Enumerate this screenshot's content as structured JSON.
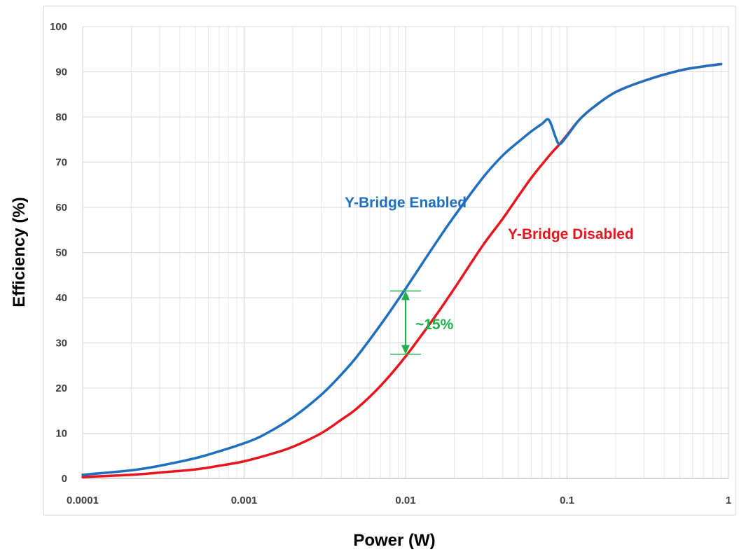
{
  "chart_data": {
    "type": "line",
    "xscale": "log",
    "xlabel": "Power (W)",
    "ylabel": "Efficiency (%)",
    "xlim": [
      0.0001,
      1
    ],
    "ylim": [
      0,
      100
    ],
    "x_ticks": [
      "0.0001",
      "0.001",
      "0.01",
      "0.1",
      "1"
    ],
    "y_ticks": [
      "0",
      "10",
      "20",
      "30",
      "40",
      "50",
      "60",
      "70",
      "80",
      "90",
      "100"
    ],
    "grid": true,
    "series": [
      {
        "name": "Y-Bridge Enabled",
        "color": "#1f6fbf",
        "x": [
          0.0001,
          0.0002,
          0.0003,
          0.0005,
          0.0007,
          0.001,
          0.0013,
          0.002,
          0.003,
          0.004,
          0.005,
          0.007,
          0.01,
          0.015,
          0.02,
          0.03,
          0.04,
          0.05,
          0.06,
          0.07,
          0.076,
          0.08,
          0.085,
          0.09,
          0.1,
          0.12,
          0.15,
          0.2,
          0.3,
          0.5,
          0.7,
          0.9
        ],
        "y": [
          0.8,
          1.8,
          2.8,
          4.5,
          6.0,
          7.8,
          9.5,
          13.5,
          18.5,
          23.0,
          27.0,
          34.0,
          42.0,
          51.5,
          58.0,
          66.5,
          71.5,
          74.5,
          76.8,
          78.5,
          79.5,
          78.2,
          75.5,
          74.0,
          75.8,
          79.5,
          82.5,
          85.5,
          88.0,
          90.3,
          91.2,
          91.7
        ]
      },
      {
        "name": "Y-Bridge Disabled",
        "color": "#e8141e",
        "x": [
          0.0001,
          0.0002,
          0.0003,
          0.0005,
          0.0007,
          0.001,
          0.0015,
          0.002,
          0.003,
          0.004,
          0.005,
          0.007,
          0.01,
          0.015,
          0.02,
          0.03,
          0.04,
          0.05,
          0.06,
          0.07,
          0.08,
          0.09,
          0.1,
          0.12,
          0.15,
          0.2,
          0.3,
          0.5,
          0.7,
          0.9
        ],
        "y": [
          0.3,
          0.8,
          1.3,
          2.0,
          2.8,
          3.8,
          5.5,
          7.0,
          10.0,
          13.0,
          15.5,
          20.5,
          27.0,
          35.5,
          42.0,
          51.5,
          57.5,
          62.5,
          66.5,
          69.5,
          72.0,
          74.0,
          76.0,
          79.5,
          82.5,
          85.5,
          88.0,
          90.3,
          91.2,
          91.7
        ]
      }
    ],
    "annotations": [
      {
        "text": "Y-Bridge Enabled",
        "color": "#1f6fbf",
        "x": 0.0042,
        "y": 60
      },
      {
        "text": "Y-Bridge Disabled",
        "color": "#e8141e",
        "x": 0.043,
        "y": 53
      },
      {
        "text": "~15%",
        "color": "#22b04c",
        "x": 0.0115,
        "y": 33
      }
    ],
    "marker": {
      "color": "#22b04c",
      "x": 0.01,
      "y_top": 41.5,
      "y_bottom": 27.5
    }
  }
}
